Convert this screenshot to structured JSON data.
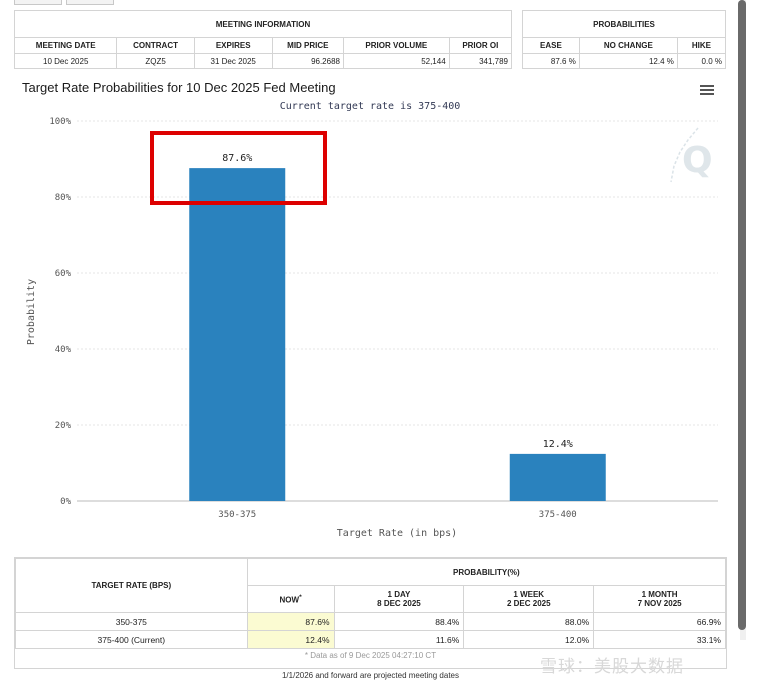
{
  "meeting_info": {
    "title": "MEETING INFORMATION",
    "headers": [
      "MEETING DATE",
      "CONTRACT",
      "EXPIRES",
      "MID PRICE",
      "PRIOR VOLUME",
      "PRIOR OI"
    ],
    "values": [
      "10 Dec 2025",
      "ZQZ5",
      "31 Dec 2025",
      "96.2688",
      "52,144",
      "341,789"
    ]
  },
  "probabilities": {
    "title": "PROBABILITIES",
    "headers": [
      "EASE",
      "NO CHANGE",
      "HIKE"
    ],
    "values": [
      "87.6 %",
      "12.4 %",
      "0.0 %"
    ]
  },
  "chart_data": {
    "type": "bar",
    "title": "Target Rate Probabilities for 10 Dec 2025 Fed Meeting",
    "subtitle": "Current target rate is 375-400",
    "categories": [
      "350-375",
      "375-400"
    ],
    "values": [
      87.6,
      12.4
    ],
    "data_labels": [
      "87.6%",
      "12.4%"
    ],
    "xlabel": "Target Rate (in bps)",
    "ylabel": "Probability",
    "ylim": [
      0,
      100
    ],
    "yticks": [
      "0%",
      "20%",
      "40%",
      "60%",
      "80%",
      "100%"
    ],
    "bar_color": "#2a82be",
    "grid": "horizontal",
    "highlight_color": "#dd0000"
  },
  "menu_icon": "hamburger-menu-icon",
  "watermark_icon": "q-logo-icon",
  "bottom_table": {
    "target_rate_header": "TARGET RATE (BPS)",
    "prob_header": "PROBABILITY(%)",
    "col_now": "NOW",
    "col_now_mark": "*",
    "col_1day": "1 DAY",
    "col_1day_date": "8 DEC 2025",
    "col_1week": "1 WEEK",
    "col_1week_date": "2 DEC 2025",
    "col_1month": "1 MONTH",
    "col_1month_date": "7 NOV 2025",
    "rows": [
      {
        "rate": "350-375",
        "now": "87.6%",
        "day": "88.4%",
        "week": "88.0%",
        "month": "66.9%"
      },
      {
        "rate": "375-400 (Current)",
        "now": "12.4%",
        "day": "11.6%",
        "week": "12.0%",
        "month": "33.1%"
      }
    ],
    "data_asof": "* Data as of 9 Dec 2025 04:27:10 CT"
  },
  "footnote": "1/1/2026 and forward are projected meeting dates",
  "watermark_text": "雪球：美股大数据",
  "highlight_color": "#dd0000"
}
